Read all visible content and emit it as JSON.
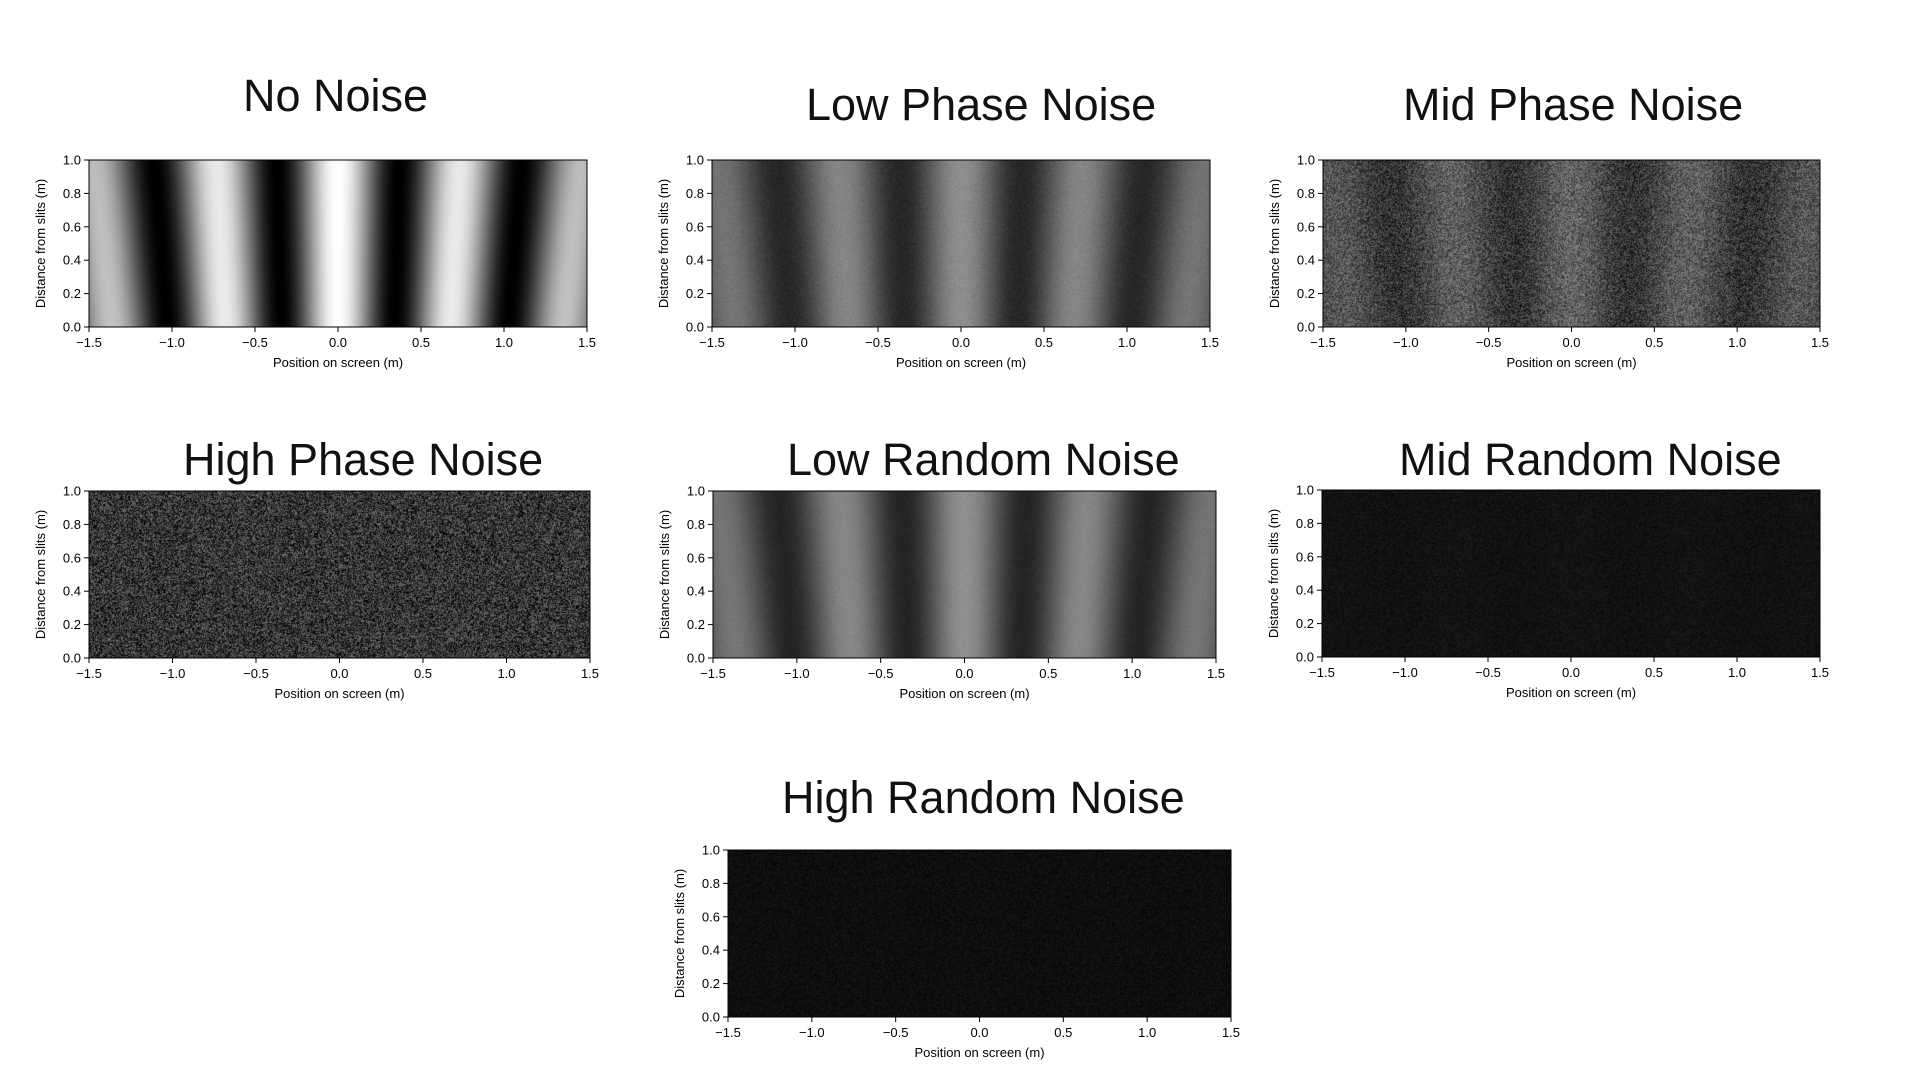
{
  "chart_data": [
    {
      "type": "heatmap",
      "title": "No Noise",
      "xlabel": "Position on screen (m)",
      "ylabel": "Distance from slits (m)",
      "xlim": [
        -1.5,
        1.5
      ],
      "ylim": [
        0.0,
        1.0
      ],
      "xticks": [
        "−1.5",
        "−1.0",
        "−0.5",
        "0.0",
        "0.5",
        "1.0",
        "1.5"
      ],
      "yticks": [
        "0.0",
        "0.2",
        "0.4",
        "0.6",
        "0.8",
        "1.0"
      ],
      "noise": "none",
      "contrast": 1.0,
      "brightness": 1.0,
      "grain": 0.0
    },
    {
      "type": "heatmap",
      "title": "Low Phase Noise",
      "xlabel": "Position on screen (m)",
      "ylabel": "Distance from slits (m)",
      "xlim": [
        -1.5,
        1.5
      ],
      "ylim": [
        0.0,
        1.0
      ],
      "xticks": [
        "−1.5",
        "−1.0",
        "−0.5",
        "0.0",
        "0.5",
        "1.0",
        "1.5"
      ],
      "yticks": [
        "0.0",
        "0.2",
        "0.4",
        "0.6",
        "0.8",
        "1.0"
      ],
      "noise": "phase-low",
      "contrast": 0.6,
      "brightness": 0.68,
      "grain": 0.03
    },
    {
      "type": "heatmap",
      "title": "Mid Phase Noise",
      "xlabel": "Position on screen (m)",
      "ylabel": "Distance from slits (m)",
      "xlim": [
        -1.5,
        1.5
      ],
      "ylim": [
        0.0,
        1.0
      ],
      "xticks": [
        "−1.5",
        "−1.0",
        "−0.5",
        "0.0",
        "0.5",
        "1.0",
        "1.5"
      ],
      "yticks": [
        "0.0",
        "0.2",
        "0.4",
        "0.6",
        "0.8",
        "1.0"
      ],
      "noise": "phase-mid",
      "contrast": 0.35,
      "brightness": 0.55,
      "grain": 0.18
    },
    {
      "type": "heatmap",
      "title": "High Phase Noise",
      "xlabel": "Position on screen (m)",
      "ylabel": "Distance from slits (m)",
      "xlim": [
        -1.5,
        1.5
      ],
      "ylim": [
        0.0,
        1.0
      ],
      "xticks": [
        "−1.5",
        "−1.0",
        "−0.5",
        "0.0",
        "0.5",
        "1.0",
        "1.5"
      ],
      "yticks": [
        "0.0",
        "0.2",
        "0.4",
        "0.6",
        "0.8",
        "1.0"
      ],
      "noise": "phase-high",
      "contrast": 0.0,
      "brightness": 0.38,
      "grain": 0.25
    },
    {
      "type": "heatmap",
      "title": "Low Random Noise",
      "xlabel": "Position on screen (m)",
      "ylabel": "Distance from slits (m)",
      "xlim": [
        -1.5,
        1.5
      ],
      "ylim": [
        0.0,
        1.0
      ],
      "xticks": [
        "−1.5",
        "−1.0",
        "−0.5",
        "0.0",
        "0.5",
        "1.0",
        "1.5"
      ],
      "yticks": [
        "0.0",
        "0.2",
        "0.4",
        "0.6",
        "0.8",
        "1.0"
      ],
      "noise": "random-low",
      "contrast": 0.62,
      "brightness": 0.68,
      "grain": 0.02
    },
    {
      "type": "heatmap",
      "title": "Mid Random Noise",
      "xlabel": "Position on screen (m)",
      "ylabel": "Distance from slits (m)",
      "xlim": [
        -1.5,
        1.5
      ],
      "ylim": [
        0.0,
        1.0
      ],
      "xticks": [
        "−1.5",
        "−1.0",
        "−0.5",
        "0.0",
        "0.5",
        "1.0",
        "1.5"
      ],
      "yticks": [
        "0.0",
        "0.2",
        "0.4",
        "0.6",
        "0.8",
        "1.0"
      ],
      "noise": "random-mid",
      "contrast": 0.06,
      "brightness": 0.13,
      "grain": 0.04
    },
    {
      "type": "heatmap",
      "title": "High Random Noise",
      "xlabel": "Position on screen (m)",
      "ylabel": "Distance from slits (m)",
      "xlim": [
        -1.5,
        1.5
      ],
      "ylim": [
        0.0,
        1.0
      ],
      "xticks": [
        "−1.5",
        "−1.0",
        "−0.5",
        "0.0",
        "0.5",
        "1.0",
        "1.5"
      ],
      "yticks": [
        "0.0",
        "0.2",
        "0.4",
        "0.6",
        "0.8",
        "1.0"
      ],
      "noise": "random-high",
      "contrast": 0.03,
      "brightness": 0.1,
      "grain": 0.04
    }
  ]
}
